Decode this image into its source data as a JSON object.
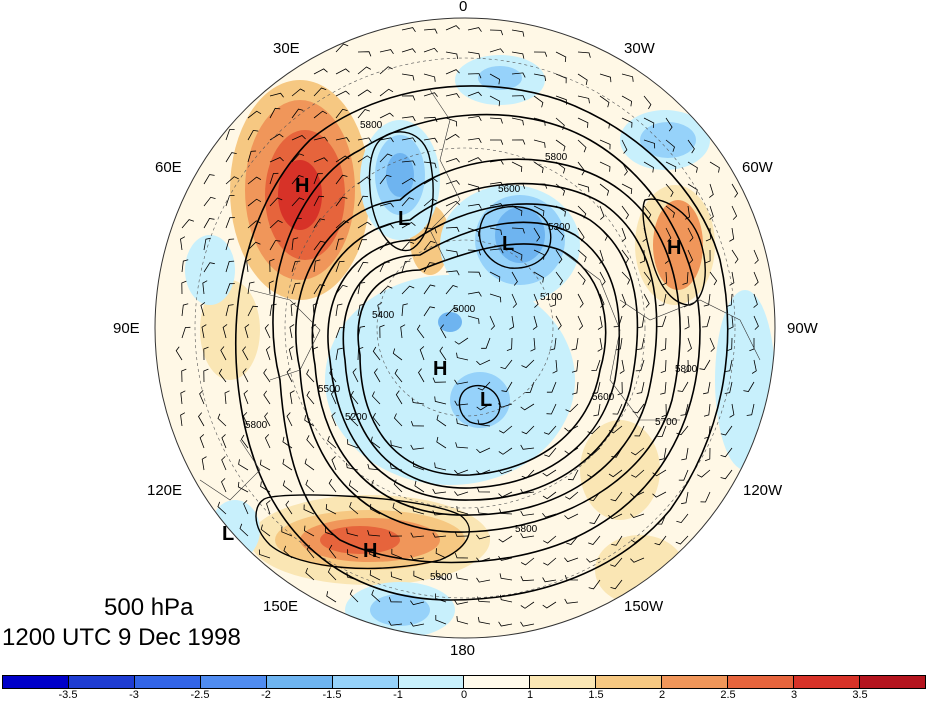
{
  "caption": {
    "level": "500 hPa",
    "time": "1200 UTC 9 Dec 1998"
  },
  "longitude_labels": {
    "lon_0": "0",
    "lon_30w": "30W",
    "lon_60w": "60W",
    "lon_90w": "90W",
    "lon_120w": "120W",
    "lon_150w": "150W",
    "lon_180": "180",
    "lon_150e": "150E",
    "lon_120e": "120E",
    "lon_90e": "90E",
    "lon_60e": "60E",
    "lon_30e": "30E"
  },
  "pressure_systems": [
    {
      "type": "H",
      "region": "western Russia"
    },
    {
      "type": "L",
      "region": "Scandinavia"
    },
    {
      "type": "L",
      "region": "Greenland"
    },
    {
      "type": "H",
      "region": "North Atlantic"
    },
    {
      "type": "H",
      "region": "Siberia"
    },
    {
      "type": "L",
      "region": "Arctic Canada"
    },
    {
      "type": "H",
      "region": "North Pacific"
    },
    {
      "type": "L",
      "region": "East Asia"
    }
  ],
  "contour_labels": [
    "5800",
    "5600",
    "5500",
    "5300",
    "5400",
    "5700",
    "5000",
    "5100",
    "5200",
    "5900"
  ],
  "colorbar": {
    "colors": [
      "#0000c8",
      "#1e3cd2",
      "#3264e6",
      "#508cf0",
      "#6eb4f0",
      "#96d2fa",
      "#c8f0fc",
      "#fffaeb",
      "#fae6b4",
      "#f6c882",
      "#f0965a",
      "#e6643c",
      "#d73228",
      "#b4141e"
    ],
    "tick_labels": [
      "-3.5",
      "-3",
      "-2.5",
      "-2",
      "-1.5",
      "-1",
      "0",
      "1",
      "1.5",
      "2",
      "2.5",
      "3",
      "3.5"
    ]
  }
}
